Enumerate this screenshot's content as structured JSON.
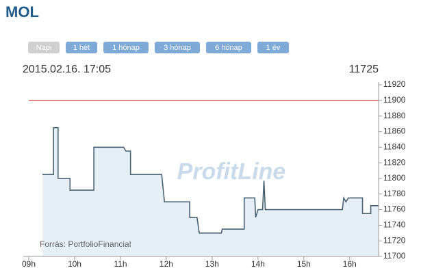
{
  "chart_data": {
    "type": "line",
    "title": "MOL",
    "buttons": [
      "Napi",
      "1 hét",
      "1 hónap",
      "3 hónap",
      "6 hónap",
      "1 év"
    ],
    "selected_button": 0,
    "timestamp": "2015.02.16. 17:05",
    "last_price": 11725,
    "watermark": "ProfitLine",
    "source": "Forrás: PortfolioFinancial",
    "reference_line": {
      "value": 11900,
      "color": "#d9534f"
    },
    "x": [
      9.3,
      9.54,
      9.54,
      9.64,
      9.64,
      9.9,
      9.9,
      10.42,
      10.42,
      11.07,
      11.12,
      11.22,
      11.22,
      11.9,
      11.96,
      12.51,
      12.51,
      12.67,
      12.72,
      13.2,
      13.22,
      13.7,
      13.7,
      13.93,
      13.95,
      14.0,
      14.1,
      14.13,
      14.16,
      15.84,
      15.87,
      15.92,
      15.97,
      16.28,
      16.28,
      16.46,
      16.46,
      16.63
    ],
    "series": [
      {
        "name": "MOL",
        "color": "#4a6373",
        "fill": "#e6eef6",
        "values": [
          11805,
          11805,
          11865,
          11865,
          11800,
          11800,
          11785,
          11785,
          11840,
          11840,
          11835,
          11835,
          11805,
          11805,
          11770,
          11770,
          11750,
          11750,
          11730,
          11730,
          11735,
          11735,
          11775,
          11775,
          11750,
          11760,
          11760,
          11797,
          11760,
          11760,
          11775,
          11770,
          11775,
          11775,
          11755,
          11755,
          11765,
          11765
        ]
      }
    ],
    "xlim": [
      9,
      16.63
    ],
    "xticks": [
      {
        "value": 9,
        "label": "09h"
      },
      {
        "value": 10,
        "label": "10h"
      },
      {
        "value": 11,
        "label": "11h"
      },
      {
        "value": 12,
        "label": "12h"
      },
      {
        "value": 13,
        "label": "13h"
      },
      {
        "value": 14,
        "label": "14h"
      },
      {
        "value": 15,
        "label": "15h"
      },
      {
        "value": 16,
        "label": "16h"
      }
    ],
    "ylim": [
      11700,
      11920
    ],
    "yticks": [
      11700,
      11720,
      11740,
      11760,
      11780,
      11800,
      11820,
      11840,
      11860,
      11880,
      11900,
      11920
    ]
  }
}
